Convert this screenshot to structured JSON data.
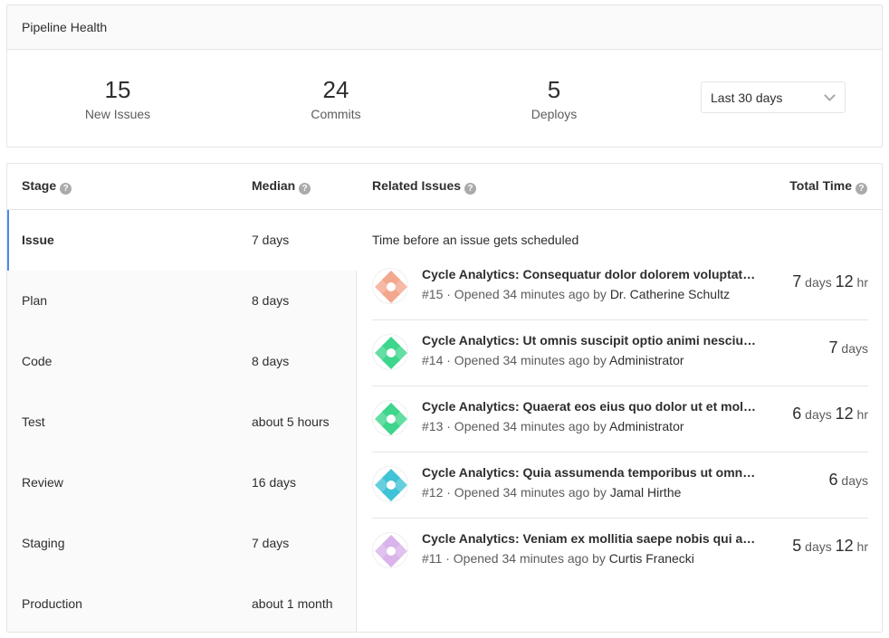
{
  "pipeline": {
    "title": "Pipeline Health",
    "stats": [
      {
        "value": "15",
        "label": "New Issues"
      },
      {
        "value": "24",
        "label": "Commits"
      },
      {
        "value": "5",
        "label": "Deploys"
      }
    ],
    "range": "Last 30 days"
  },
  "table": {
    "headers": {
      "stage": "Stage",
      "median": "Median",
      "related": "Related Issues",
      "total": "Total Time"
    },
    "stages": [
      {
        "name": "Issue",
        "median": "7 days"
      },
      {
        "name": "Plan",
        "median": "8 days"
      },
      {
        "name": "Code",
        "median": "8 days"
      },
      {
        "name": "Test",
        "median": "about 5 hours"
      },
      {
        "name": "Review",
        "median": "16 days"
      },
      {
        "name": "Staging",
        "median": "7 days"
      },
      {
        "name": "Production",
        "median": "about 1 month"
      }
    ],
    "description": "Time before an issue gets scheduled",
    "issues": [
      {
        "title": "Cycle Analytics: Consequatur dolor dolorem voluptat…",
        "id": "#15",
        "opened": "· Opened 34 minutes ago by",
        "author": "Dr. Catherine Schultz",
        "d": "7",
        "du": "days",
        "h": "12",
        "hu": "hr",
        "color": "#f2a88f"
      },
      {
        "title": "Cycle Analytics: Ut omnis suscipit optio animi nesciu…",
        "id": "#14",
        "opened": "· Opened 34 minutes ago by",
        "author": "Administrator",
        "d": "7",
        "du": "days",
        "h": "",
        "hu": "",
        "color": "#3dd68c"
      },
      {
        "title": "Cycle Analytics: Quaerat eos eius quo dolor ut et mol…",
        "id": "#13",
        "opened": "· Opened 34 minutes ago by",
        "author": "Administrator",
        "d": "6",
        "du": "days",
        "h": "12",
        "hu": "hr",
        "color": "#3dd68c"
      },
      {
        "title": "Cycle Analytics: Quia assumenda temporibus ut omn…",
        "id": "#12",
        "opened": "· Opened 34 minutes ago by",
        "author": "Jamal Hirthe",
        "d": "6",
        "du": "days",
        "h": "",
        "hu": "",
        "color": "#3fc3d6"
      },
      {
        "title": "Cycle Analytics: Veniam ex mollitia saepe nobis qui a…",
        "id": "#11",
        "opened": "· Opened 34 minutes ago by",
        "author": "Curtis Franecki",
        "d": "5",
        "du": "days",
        "h": "12",
        "hu": "hr",
        "color": "#d9b3ea"
      }
    ]
  }
}
